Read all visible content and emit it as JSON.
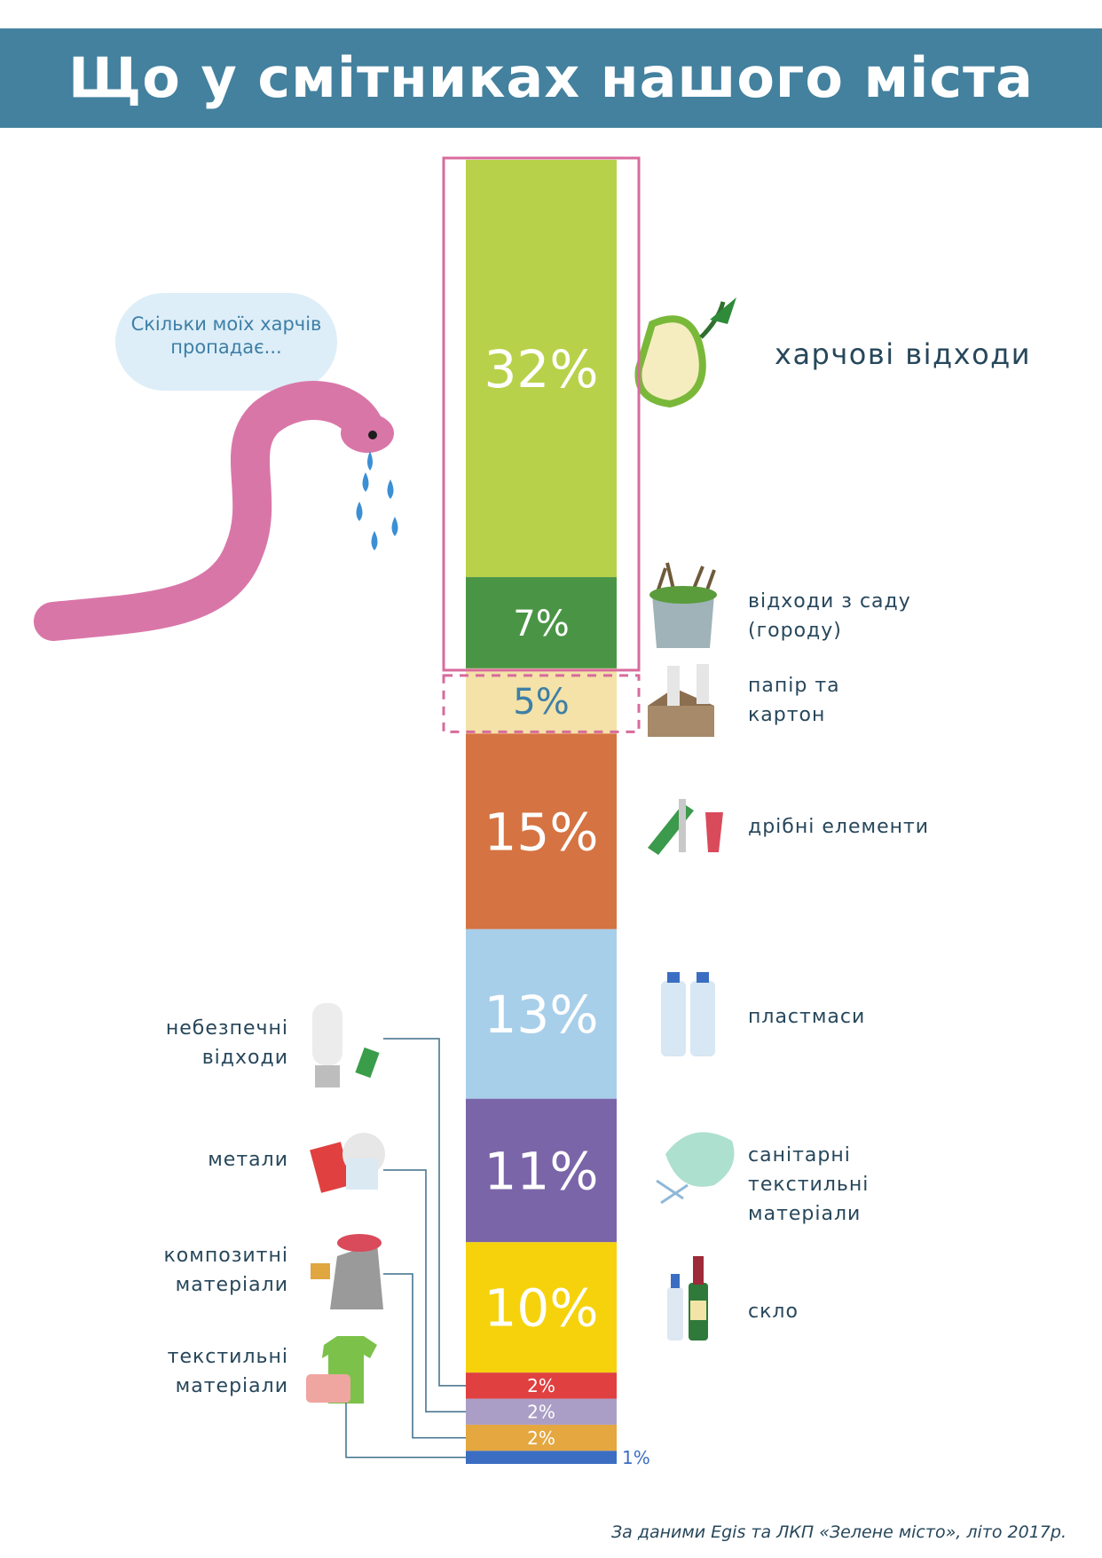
{
  "title": "Що у смітниках нашого міста",
  "speech": "Скільки моїх харчів пропадає...",
  "source": "За даними  Egis та ЛКП «Зелене місто», літо 2017р.",
  "chart_data": {
    "type": "bar",
    "orientation": "stacked-vertical",
    "categories": [
      "харчові відходи",
      "відходи з саду (городу)",
      "папір та картон",
      "дрібні елементи",
      "пластмаси",
      "санітарні текстильні матеріали",
      "скло",
      "небезпечні відходи",
      "метали",
      "композитні матеріали",
      "текстильні матеріали"
    ],
    "values": [
      32,
      7,
      5,
      15,
      13,
      11,
      10,
      2,
      2,
      2,
      1
    ],
    "value_labels": [
      "32%",
      "7%",
      "5%",
      "15%",
      "13%",
      "11%",
      "10%",
      "2%",
      "2%",
      "2%",
      "1%"
    ],
    "colors": [
      "#b8d14a",
      "#4a9545",
      "#f4e2a8",
      "#d57342",
      "#a8cfea",
      "#7a65a9",
      "#f5d20c",
      "#e04040",
      "#ab9ec6",
      "#e5a740",
      "#3b6ec3"
    ],
    "label_side": [
      "right",
      "right",
      "right",
      "right",
      "right",
      "right",
      "right",
      "left",
      "left",
      "left",
      "left"
    ],
    "highlight": {
      "solid": [
        0,
        1
      ],
      "dashed": [
        2
      ],
      "color": "#d86b9d"
    }
  }
}
